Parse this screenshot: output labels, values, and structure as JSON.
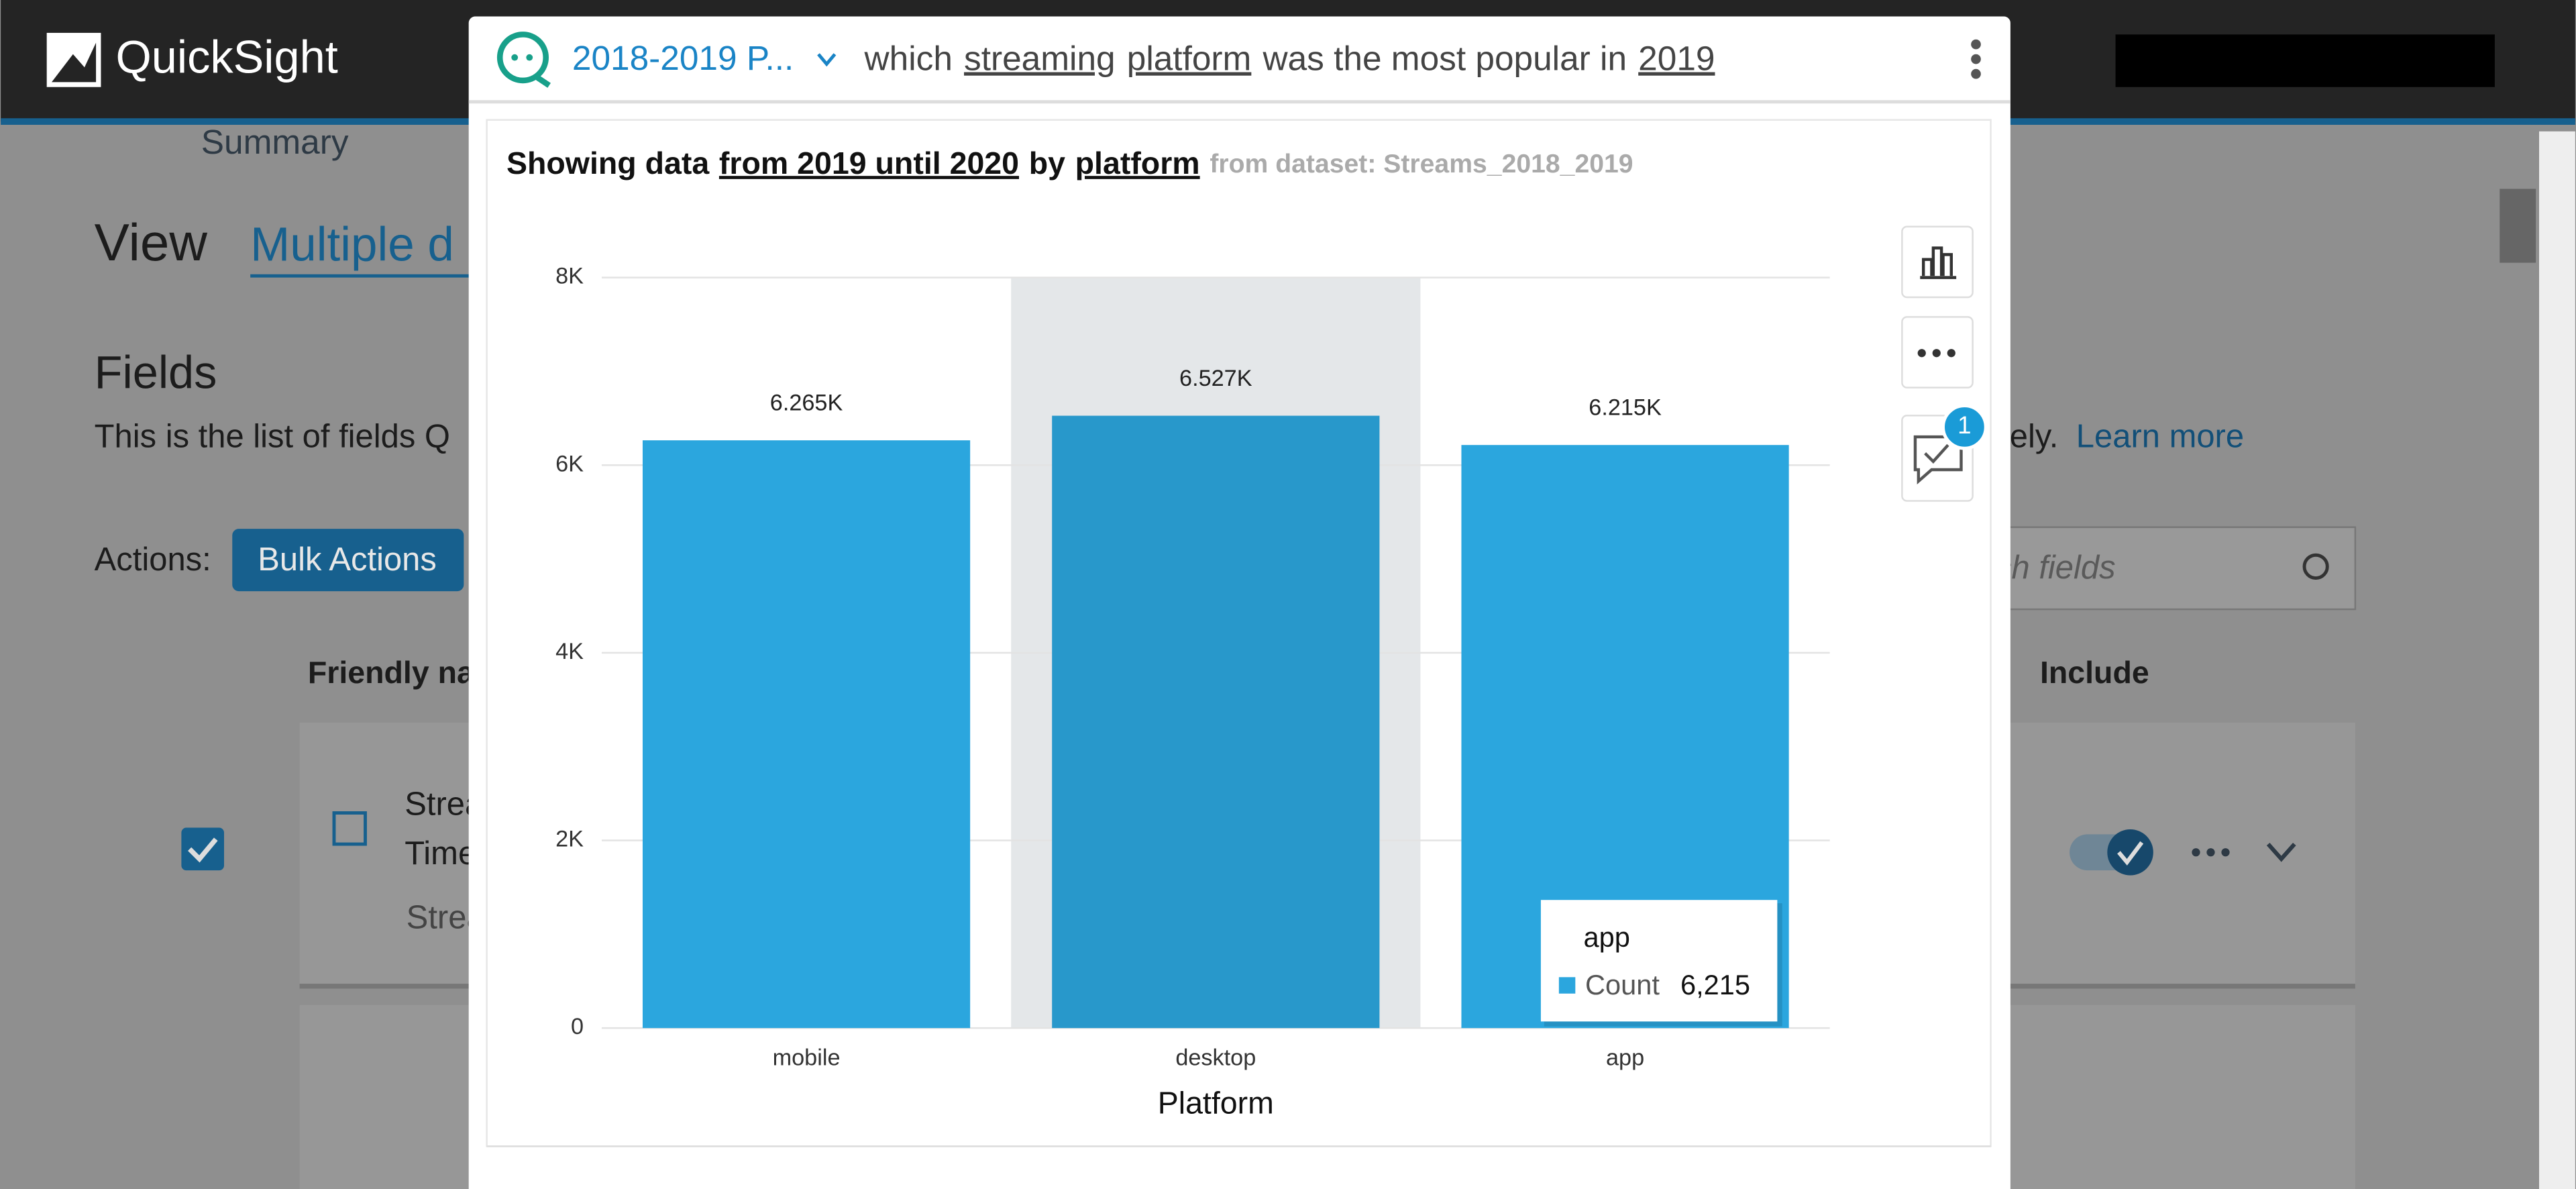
{
  "header": {
    "brand": "QuickSight"
  },
  "background": {
    "tab": "Summary",
    "view_label": "View",
    "view_value": "Multiple d",
    "fields_heading": "Fields",
    "fields_desc": "This is the list of fields Q",
    "fields_desc_end": "tely.",
    "learn_more": "Learn more",
    "actions_label": "Actions:",
    "bulk_actions": "Bulk Actions",
    "search_placeholder": "rch fields",
    "col_friendly_name": "Friendly na",
    "col_include": "Include",
    "row_name_1": "Strea",
    "row_name_2": "Time",
    "row_sub": "Strea"
  },
  "q_bar": {
    "topic": "2018-2019 P...",
    "question": [
      "which",
      "streaming",
      "platform",
      "was the most popular in",
      "2019"
    ]
  },
  "badge": "1",
  "chart_data": {
    "type": "bar",
    "title": [
      "Showing data",
      "from 2019 until 2020",
      "by",
      "platform"
    ],
    "subtitle": "from dataset: Streams_2018_2019",
    "x_label": "Platform",
    "categories": [
      "mobile",
      "desktop",
      "app"
    ],
    "values": [
      6265,
      6527,
      6215
    ],
    "value_labels": [
      "6.265K",
      "6.527K",
      "6.215K"
    ],
    "colors": [
      "#2ba6de",
      "#2898cb",
      "#2ba6de"
    ],
    "highlight_color": "#e4e7e9",
    "ylim": [
      0,
      8000
    ],
    "yticks": [
      0,
      {
        "value": 2000,
        "label": "2K"
      },
      {
        "value": 4000,
        "label": "4K"
      },
      {
        "value": 6000,
        "label": "6K"
      },
      {
        "value": 8000,
        "label": "8K"
      }
    ],
    "grid": true,
    "tooltip": {
      "measure": "Count",
      "value_text": "6,215"
    }
  }
}
